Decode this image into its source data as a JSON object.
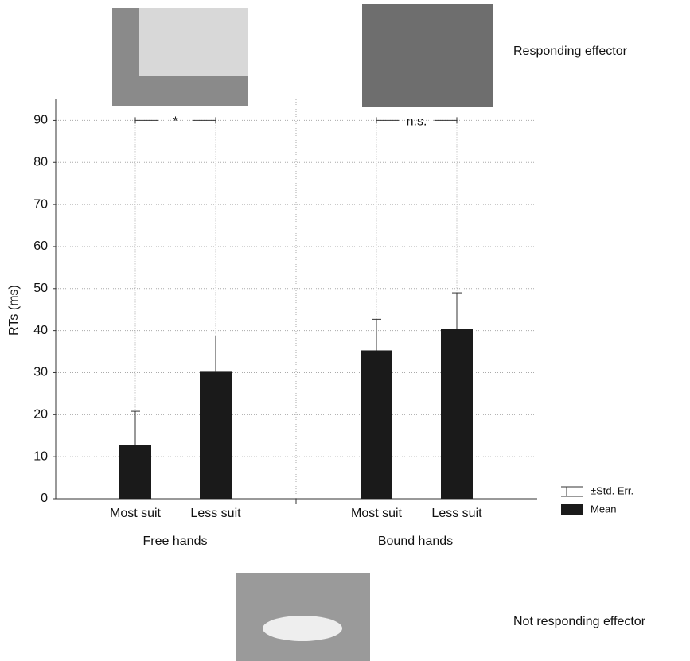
{
  "figure": {
    "photo_labels": [
      "Responding effector",
      "Not responding effector"
    ]
  },
  "chart_data": {
    "type": "bar",
    "ylabel": "RTs (ms)",
    "categories": [
      "Most suit",
      "Less suit",
      "Most suit",
      "Less suit"
    ],
    "groups": [
      "Free  hands",
      "Bound  hands"
    ],
    "series": [
      {
        "name": "Mean",
        "color": "#1a1a1a",
        "values": [
          12.8,
          30.2,
          35.3,
          40.4
        ],
        "errors": [
          8.0,
          8.5,
          7.4,
          8.6
        ]
      }
    ],
    "error_label": "±Std. Err.",
    "annotations": [
      "*",
      "n.s."
    ],
    "ylim": [
      0,
      95
    ],
    "yticks": [
      0,
      10,
      20,
      30,
      40,
      50,
      60,
      70,
      80,
      90
    ],
    "grid": true
  }
}
